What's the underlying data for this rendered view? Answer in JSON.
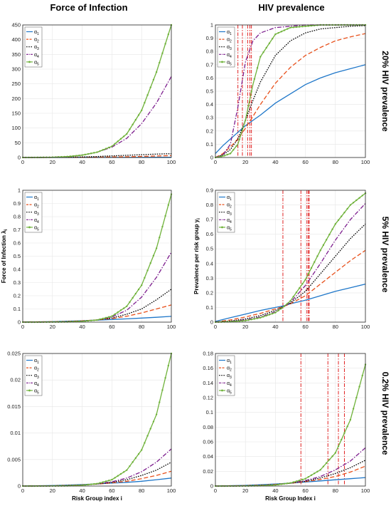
{
  "headers": {
    "col_left": "Force of Infection",
    "col_right": "HIV prevalence"
  },
  "row_labels": [
    "20% HIV prevalence",
    "5% HIV prevalence",
    "0.2% HIV prevalence"
  ],
  "series_style": [
    {
      "color": "#1f77c9",
      "dash": "",
      "marker": false
    },
    {
      "color": "#e8501b",
      "dash": "6,3",
      "marker": false
    },
    {
      "color": "#000000",
      "dash": "1.6,1.6",
      "marker": false
    },
    {
      "color": "#7d1e8e",
      "dash": "6,2,1.5,2",
      "marker": false
    },
    {
      "color": "#6fb23a",
      "dash": "",
      "marker": true
    }
  ],
  "vline_color": "#e02020",
  "chart_data": [
    {
      "type": "line",
      "panel": "row1-left",
      "xlim": [
        0,
        100
      ],
      "ylim": [
        0,
        450
      ],
      "xticks": [
        0,
        20,
        40,
        60,
        80,
        100
      ],
      "yticks": [
        0,
        50,
        100,
        150,
        200,
        250,
        300,
        350,
        400,
        450
      ],
      "ytick_labels": [
        "0",
        "50",
        "100",
        "150",
        "200",
        "250",
        "300",
        "350",
        "400",
        "450"
      ],
      "xlabel": "",
      "ylabel": "",
      "legend": {
        "position": "top-left",
        "entries": [
          {
            "base": "α",
            "sub": "1"
          },
          {
            "base": "α",
            "sub": "2"
          },
          {
            "base": "α",
            "sub": "3"
          },
          {
            "base": "α",
            "sub": "4"
          },
          {
            "base": "α",
            "sub": "5"
          }
        ]
      },
      "x": [
        0,
        10,
        20,
        30,
        40,
        50,
        60,
        70,
        80,
        90,
        100
      ],
      "series": [
        {
          "values": [
            0,
            0.02,
            0.05,
            0.1,
            0.15,
            0.2,
            0.3,
            0.4,
            0.55,
            0.7,
            0.8
          ]
        },
        {
          "values": [
            0,
            0.05,
            0.15,
            0.3,
            0.6,
            1,
            1.6,
            2.5,
            3.6,
            5,
            6.5
          ]
        },
        {
          "values": [
            0,
            0.1,
            0.4,
            1,
            2,
            3.5,
            5.5,
            7.5,
            9.5,
            11.5,
            13
          ]
        },
        {
          "values": [
            0,
            0.3,
            1,
            3,
            8,
            18,
            35,
            65,
            115,
            185,
            275
          ]
        },
        {
          "values": [
            0,
            0.3,
            1,
            3,
            8,
            18,
            38,
            80,
            160,
            290,
            450
          ]
        }
      ],
      "vlines": []
    },
    {
      "type": "line",
      "panel": "row1-right",
      "xlim": [
        0,
        100
      ],
      "ylim": [
        0,
        1
      ],
      "xticks": [
        0,
        20,
        40,
        60,
        80,
        100
      ],
      "yticks": [
        0,
        0.1,
        0.2,
        0.3,
        0.4,
        0.5,
        0.6,
        0.7,
        0.8,
        0.9,
        1
      ],
      "ytick_labels": [
        "0",
        "0.1",
        "0.2",
        "0.3",
        "0.4",
        "0.5",
        "0.6",
        "0.7",
        "0.8",
        "0.9",
        "1"
      ],
      "xlabel": "",
      "ylabel": "",
      "legend": {
        "position": "top-left",
        "entries": [
          {
            "base": "α",
            "sub": "1"
          },
          {
            "base": "α",
            "sub": "2"
          },
          {
            "base": "α",
            "sub": "3"
          },
          {
            "base": "α",
            "sub": "4"
          },
          {
            "base": "α",
            "sub": "5"
          }
        ]
      },
      "x": [
        0,
        5,
        10,
        15,
        20,
        25,
        30,
        40,
        50,
        60,
        70,
        80,
        90,
        100
      ],
      "series": [
        {
          "values": [
            0.03,
            0.09,
            0.14,
            0.19,
            0.24,
            0.28,
            0.32,
            0.41,
            0.48,
            0.55,
            0.6,
            0.64,
            0.67,
            0.7
          ]
        },
        {
          "values": [
            0,
            0.03,
            0.08,
            0.14,
            0.22,
            0.31,
            0.4,
            0.56,
            0.68,
            0.77,
            0.83,
            0.88,
            0.91,
            0.935
          ]
        },
        {
          "values": [
            0,
            0.02,
            0.06,
            0.14,
            0.28,
            0.43,
            0.57,
            0.77,
            0.88,
            0.94,
            0.97,
            0.98,
            0.99,
            0.995
          ]
        },
        {
          "values": [
            0,
            0.02,
            0.1,
            0.38,
            0.72,
            0.88,
            0.94,
            0.98,
            0.99,
            1,
            1,
            1,
            1,
            1
          ]
        },
        {
          "values": [
            0,
            0.01,
            0.03,
            0.1,
            0.28,
            0.55,
            0.76,
            0.93,
            0.98,
            0.99,
            1,
            1,
            1,
            1
          ]
        }
      ],
      "vlines": [
        15,
        18,
        21.5,
        23,
        24
      ]
    },
    {
      "type": "line",
      "panel": "row2-left",
      "xlim": [
        0,
        100
      ],
      "ylim": [
        0,
        1
      ],
      "xticks": [
        0,
        20,
        40,
        60,
        80,
        100
      ],
      "yticks": [
        0,
        0.1,
        0.2,
        0.3,
        0.4,
        0.5,
        0.6,
        0.7,
        0.8,
        0.9,
        1
      ],
      "ytick_labels": [
        "0",
        "0.1",
        "0.2",
        "0.3",
        "0.4",
        "0.5",
        "0.6",
        "0.7",
        "0.8",
        "0.9",
        "1"
      ],
      "xlabel": "",
      "ylabel": "Force of Infection λ",
      "ylabel_sub": "i",
      "legend": {
        "position": "top-left",
        "entries": [
          {
            "base": "α",
            "sub": "1"
          },
          {
            "base": "α",
            "sub": "2"
          },
          {
            "base": "α",
            "sub": "3"
          },
          {
            "base": "α",
            "sub": "4"
          },
          {
            "base": "α",
            "sub": "5"
          }
        ]
      },
      "x": [
        0,
        10,
        20,
        30,
        40,
        50,
        60,
        70,
        80,
        90,
        100
      ],
      "series": [
        {
          "values": [
            0.001,
            0.002,
            0.004,
            0.007,
            0.011,
            0.015,
            0.02,
            0.025,
            0.031,
            0.037,
            0.044
          ]
        },
        {
          "values": [
            0.001,
            0.002,
            0.003,
            0.005,
            0.01,
            0.017,
            0.027,
            0.045,
            0.07,
            0.1,
            0.13
          ]
        },
        {
          "values": [
            0,
            0.001,
            0.002,
            0.004,
            0.008,
            0.016,
            0.032,
            0.06,
            0.1,
            0.17,
            0.25
          ]
        },
        {
          "values": [
            0,
            0,
            0.001,
            0.003,
            0.007,
            0.017,
            0.04,
            0.09,
            0.19,
            0.34,
            0.53
          ]
        },
        {
          "values": [
            0,
            0,
            0.001,
            0.002,
            0.006,
            0.016,
            0.045,
            0.12,
            0.28,
            0.56,
            0.97
          ]
        }
      ],
      "vlines": []
    },
    {
      "type": "line",
      "panel": "row2-right",
      "xlim": [
        0,
        100
      ],
      "ylim": [
        0,
        0.9
      ],
      "xticks": [
        0,
        20,
        40,
        60,
        80,
        100
      ],
      "yticks": [
        0,
        0.1,
        0.2,
        0.3,
        0.4,
        0.5,
        0.6,
        0.7,
        0.8,
        0.9
      ],
      "ytick_labels": [
        "0",
        "0.1",
        "0.2",
        "0.3",
        "0.4",
        "0.5",
        "0.6",
        "0.7",
        "0.8",
        "0.9"
      ],
      "xlabel": "",
      "ylabel": "Prevalence per risk group y",
      "ylabel_sub": "i",
      "legend": {
        "position": "top-left",
        "entries": [
          {
            "base": "α",
            "sub": "1"
          },
          {
            "base": "α",
            "sub": "2"
          },
          {
            "base": "α",
            "sub": "3"
          },
          {
            "base": "α",
            "sub": "4"
          },
          {
            "base": "α",
            "sub": "5"
          }
        ]
      },
      "x": [
        0,
        10,
        20,
        30,
        40,
        45,
        50,
        60,
        70,
        80,
        90,
        100
      ],
      "series": [
        {
          "values": [
            0.005,
            0.03,
            0.055,
            0.08,
            0.1,
            0.11,
            0.125,
            0.15,
            0.18,
            0.21,
            0.235,
            0.26
          ]
        },
        {
          "values": [
            0,
            0.015,
            0.035,
            0.06,
            0.09,
            0.105,
            0.125,
            0.18,
            0.26,
            0.34,
            0.42,
            0.49
          ]
        },
        {
          "values": [
            0,
            0.008,
            0.022,
            0.045,
            0.08,
            0.105,
            0.13,
            0.21,
            0.33,
            0.45,
            0.57,
            0.67
          ]
        },
        {
          "values": [
            0,
            0.005,
            0.015,
            0.035,
            0.07,
            0.1,
            0.135,
            0.25,
            0.4,
            0.56,
            0.7,
            0.81
          ]
        },
        {
          "values": [
            0,
            0.003,
            0.01,
            0.03,
            0.065,
            0.1,
            0.145,
            0.29,
            0.49,
            0.67,
            0.8,
            0.88
          ]
        }
      ],
      "vlines": [
        45,
        57,
        61,
        62,
        62.5
      ]
    },
    {
      "type": "line",
      "panel": "row3-left",
      "xlim": [
        0,
        100
      ],
      "ylim": [
        0,
        0.025
      ],
      "xticks": [
        0,
        20,
        40,
        60,
        80,
        100
      ],
      "yticks": [
        0,
        0.005,
        0.01,
        0.015,
        0.02,
        0.025
      ],
      "ytick_labels": [
        "0",
        "0.005",
        "0.01",
        "0.015",
        "0.02",
        "0.025"
      ],
      "xlabel": "Risk Group index i",
      "ylabel": "",
      "legend": {
        "position": "top-left",
        "entries": [
          {
            "base": "α",
            "sub": "1"
          },
          {
            "base": "α",
            "sub": "2"
          },
          {
            "base": "α",
            "sub": "3"
          },
          {
            "base": "α",
            "sub": "4"
          },
          {
            "base": "α",
            "sub": "5"
          }
        ]
      },
      "x": [
        0,
        10,
        20,
        30,
        40,
        50,
        60,
        70,
        80,
        90,
        100
      ],
      "series": [
        {
          "values": [
            0,
            5e-05,
            0.0001,
            0.00018,
            0.00028,
            0.0004,
            0.00055,
            0.0007,
            0.0009,
            0.0012,
            0.0015
          ]
        },
        {
          "values": [
            0,
            2e-05,
            6e-05,
            0.00012,
            0.00022,
            0.00038,
            0.0006,
            0.0009,
            0.0014,
            0.002,
            0.0028
          ]
        },
        {
          "values": [
            0,
            1e-05,
            4e-05,
            0.0001,
            0.0002,
            0.00038,
            0.0007,
            0.0012,
            0.002,
            0.003,
            0.0045
          ]
        },
        {
          "values": [
            0,
            0,
            2e-05,
            8e-05,
            0.00018,
            0.0004,
            0.0008,
            0.0015,
            0.0027,
            0.0045,
            0.007
          ]
        },
        {
          "values": [
            0,
            0,
            1e-05,
            5e-05,
            0.00015,
            0.00045,
            0.0012,
            0.003,
            0.0068,
            0.0135,
            0.025
          ]
        }
      ],
      "vlines": []
    },
    {
      "type": "line",
      "panel": "row3-right",
      "xlim": [
        0,
        100
      ],
      "ylim": [
        0,
        0.18
      ],
      "xticks": [
        0,
        20,
        40,
        60,
        80,
        100
      ],
      "yticks": [
        0,
        0.02,
        0.04,
        0.06,
        0.08,
        0.1,
        0.12,
        0.14,
        0.16,
        0.18
      ],
      "ytick_labels": [
        "0",
        "0.02",
        "0.04",
        "0.06",
        "0.08",
        "0.1",
        "0.12",
        "0.14",
        "0.16",
        "0.18"
      ],
      "xlabel": "Risk Group Index i",
      "ylabel": "",
      "legend": {
        "position": "top-left",
        "entries": [
          {
            "base": "α",
            "sub": "1"
          },
          {
            "base": "α",
            "sub": "2"
          },
          {
            "base": "α",
            "sub": "3"
          },
          {
            "base": "α",
            "sub": "4"
          },
          {
            "base": "α",
            "sub": "5"
          }
        ]
      },
      "x": [
        0,
        10,
        20,
        30,
        40,
        50,
        60,
        70,
        80,
        90,
        100
      ],
      "series": [
        {
          "values": [
            0,
            0.0005,
            0.001,
            0.0018,
            0.0028,
            0.004,
            0.0055,
            0.007,
            0.0085,
            0.01,
            0.0115
          ]
        },
        {
          "values": [
            0,
            0.0002,
            0.0006,
            0.0012,
            0.0022,
            0.0038,
            0.006,
            0.009,
            0.013,
            0.019,
            0.027
          ]
        },
        {
          "values": [
            0,
            0.0001,
            0.0004,
            0.001,
            0.002,
            0.0038,
            0.0065,
            0.011,
            0.017,
            0.025,
            0.035
          ]
        },
        {
          "values": [
            0,
            0,
            0.0002,
            0.0008,
            0.0018,
            0.004,
            0.0075,
            0.013,
            0.022,
            0.034,
            0.052
          ]
        },
        {
          "values": [
            0,
            0,
            0.0001,
            0.0005,
            0.0015,
            0.0042,
            0.01,
            0.022,
            0.045,
            0.09,
            0.165
          ]
        }
      ],
      "vlines": [
        57,
        75,
        82,
        86
      ]
    }
  ]
}
